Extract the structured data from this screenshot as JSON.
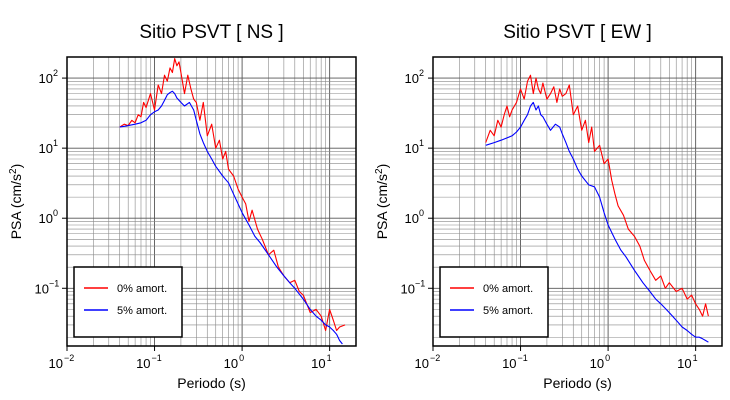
{
  "chart_data": [
    {
      "type": "line",
      "title": "Sitio PSVT [ NS ]",
      "xlabel": "Periodo (s)",
      "ylabel_main": "PSA (cm/s",
      "ylabel_sup": "2",
      "ylabel_close": ")",
      "xscale": "log",
      "yscale": "log",
      "xlim": [
        0.01,
        20
      ],
      "ylim": [
        0.015,
        200
      ],
      "grid": true,
      "legend_position": "bottom-left",
      "x_ticks": [
        {
          "base": "10",
          "exp": "−2"
        },
        {
          "base": "10",
          "exp": "−1"
        },
        {
          "base": "10",
          "exp": "0"
        },
        {
          "base": "10",
          "exp": "1"
        }
      ],
      "y_ticks": [
        {
          "base": "10",
          "exp": "2"
        },
        {
          "base": "10",
          "exp": "1"
        },
        {
          "base": "10",
          "exp": "0"
        },
        {
          "base": "10",
          "exp": "−1"
        }
      ],
      "series": [
        {
          "name": "0% amort.",
          "color": "#ff0000",
          "x": [
            0.04,
            0.045,
            0.05,
            0.055,
            0.06,
            0.065,
            0.07,
            0.075,
            0.08,
            0.09,
            0.1,
            0.11,
            0.12,
            0.13,
            0.14,
            0.15,
            0.16,
            0.17,
            0.18,
            0.19,
            0.2,
            0.22,
            0.24,
            0.26,
            0.28,
            0.3,
            0.33,
            0.36,
            0.4,
            0.45,
            0.5,
            0.55,
            0.6,
            0.65,
            0.7,
            0.8,
            0.9,
            1.0,
            1.1,
            1.2,
            1.3,
            1.5,
            1.7,
            2.0,
            2.3,
            2.6,
            3.0,
            3.5,
            4.0,
            4.5,
            5.0,
            6.0,
            7.0,
            8.0,
            9.0,
            10.0,
            11.0,
            12.0,
            13.0,
            15.0
          ],
          "y": [
            20,
            22,
            21,
            25,
            23,
            30,
            28,
            45,
            38,
            60,
            35,
            80,
            60,
            110,
            90,
            140,
            120,
            190,
            150,
            170,
            120,
            60,
            110,
            70,
            50,
            45,
            25,
            45,
            15,
            22,
            10,
            13,
            7,
            9,
            5,
            4,
            2.6,
            2.0,
            1.6,
            0.9,
            1.3,
            0.7,
            0.5,
            0.3,
            0.35,
            0.2,
            0.15,
            0.12,
            0.13,
            0.09,
            0.08,
            0.045,
            0.05,
            0.04,
            0.025,
            0.05,
            0.035,
            0.025,
            0.028,
            0.03
          ]
        },
        {
          "name": "5% amort.",
          "color": "#0000ff",
          "x": [
            0.04,
            0.05,
            0.06,
            0.07,
            0.08,
            0.09,
            0.1,
            0.11,
            0.12,
            0.13,
            0.14,
            0.15,
            0.16,
            0.17,
            0.18,
            0.2,
            0.22,
            0.25,
            0.28,
            0.3,
            0.33,
            0.36,
            0.4,
            0.45,
            0.5,
            0.6,
            0.7,
            0.8,
            0.9,
            1.0,
            1.2,
            1.4,
            1.6,
            2.0,
            2.5,
            3.0,
            3.5,
            4.0,
            5.0,
            6.0,
            7.0,
            8.0,
            9.0,
            10.0,
            11.0,
            12.0,
            13.0,
            14.0
          ],
          "y": [
            20,
            21,
            22,
            23,
            25,
            30,
            33,
            35,
            40,
            48,
            58,
            62,
            65,
            60,
            52,
            45,
            40,
            45,
            35,
            25,
            16,
            12,
            9,
            7,
            5.5,
            4,
            3.2,
            2.2,
            1.6,
            1.2,
            0.8,
            0.55,
            0.45,
            0.3,
            0.2,
            0.15,
            0.12,
            0.1,
            0.07,
            0.05,
            0.04,
            0.035,
            0.03,
            0.028,
            0.025,
            0.022,
            0.018,
            0.016
          ]
        }
      ]
    },
    {
      "type": "line",
      "title": "Sitio PSVT [ EW ]",
      "xlabel": "Periodo (s)",
      "ylabel_main": "PSA (cm/s",
      "ylabel_sup": "2",
      "ylabel_close": ")",
      "xscale": "log",
      "yscale": "log",
      "xlim": [
        0.01,
        20
      ],
      "ylim": [
        0.015,
        200
      ],
      "grid": true,
      "legend_position": "bottom-left",
      "x_ticks": [
        {
          "base": "10",
          "exp": "−2"
        },
        {
          "base": "10",
          "exp": "−1"
        },
        {
          "base": "10",
          "exp": "0"
        },
        {
          "base": "10",
          "exp": "1"
        }
      ],
      "y_ticks": [
        {
          "base": "10",
          "exp": "2"
        },
        {
          "base": "10",
          "exp": "1"
        },
        {
          "base": "10",
          "exp": "0"
        },
        {
          "base": "10",
          "exp": "−1"
        }
      ],
      "series": [
        {
          "name": "0% amort.",
          "color": "#ff0000",
          "x": [
            0.04,
            0.045,
            0.05,
            0.055,
            0.06,
            0.065,
            0.07,
            0.075,
            0.08,
            0.09,
            0.1,
            0.11,
            0.12,
            0.13,
            0.14,
            0.15,
            0.16,
            0.17,
            0.18,
            0.2,
            0.22,
            0.24,
            0.26,
            0.28,
            0.3,
            0.33,
            0.36,
            0.4,
            0.45,
            0.5,
            0.55,
            0.6,
            0.65,
            0.7,
            0.8,
            0.9,
            1.0,
            1.1,
            1.2,
            1.3,
            1.5,
            1.7,
            2.0,
            2.3,
            2.6,
            3.0,
            3.5,
            4.0,
            4.5,
            5.0,
            6.0,
            7.0,
            8.0,
            9.0,
            10.0,
            11.0,
            12.0,
            13.0,
            14.0
          ],
          "y": [
            12,
            18,
            15,
            25,
            20,
            30,
            40,
            28,
            35,
            45,
            70,
            50,
            90,
            110,
            60,
            100,
            70,
            60,
            85,
            50,
            60,
            75,
            45,
            70,
            55,
            60,
            80,
            30,
            40,
            18,
            25,
            12,
            20,
            9,
            11,
            6,
            7,
            3.5,
            2.2,
            1.5,
            1.1,
            0.7,
            0.55,
            0.4,
            0.25,
            0.18,
            0.13,
            0.15,
            0.1,
            0.12,
            0.09,
            0.1,
            0.07,
            0.08,
            0.06,
            0.05,
            0.04,
            0.06,
            0.04
          ]
        },
        {
          "name": "5% amort.",
          "color": "#0000ff",
          "x": [
            0.04,
            0.05,
            0.06,
            0.07,
            0.08,
            0.09,
            0.1,
            0.11,
            0.12,
            0.13,
            0.14,
            0.15,
            0.16,
            0.17,
            0.18,
            0.2,
            0.22,
            0.25,
            0.28,
            0.3,
            0.33,
            0.36,
            0.4,
            0.45,
            0.5,
            0.6,
            0.7,
            0.8,
            0.9,
            1.0,
            1.2,
            1.4,
            1.6,
            2.0,
            2.5,
            3.0,
            3.5,
            4.0,
            5.0,
            6.0,
            7.0,
            8.0,
            9.0,
            10.0,
            11.0,
            12.0,
            13.0,
            14.0
          ],
          "y": [
            11,
            12,
            13,
            14,
            15,
            17,
            20,
            25,
            30,
            40,
            45,
            35,
            40,
            30,
            28,
            22,
            18,
            22,
            20,
            16,
            12,
            9,
            7,
            5,
            4,
            3,
            2.8,
            2.0,
            1.2,
            0.8,
            0.5,
            0.35,
            0.28,
            0.18,
            0.12,
            0.09,
            0.07,
            0.06,
            0.045,
            0.035,
            0.028,
            0.025,
            0.022,
            0.02,
            0.02,
            0.019,
            0.018,
            0.017
          ]
        }
      ]
    }
  ]
}
